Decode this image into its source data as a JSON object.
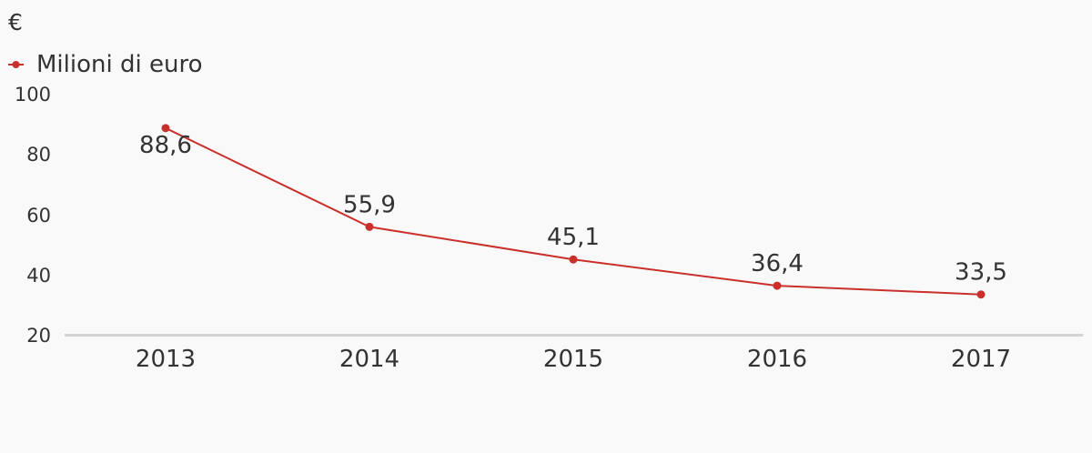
{
  "chart_data": {
    "type": "line",
    "unit_label": "€",
    "categories": [
      "2013",
      "2014",
      "2015",
      "2016",
      "2017"
    ],
    "series": [
      {
        "name": "Milioni di euro",
        "values": [
          88.6,
          55.9,
          45.1,
          36.4,
          33.5
        ],
        "labels": [
          "88,6",
          "55,9",
          "45,1",
          "36,4",
          "33,5"
        ],
        "color": "#c9302c"
      }
    ],
    "yticks": [
      "100",
      "80",
      "60",
      "40",
      "20"
    ],
    "ylim": [
      20,
      100
    ],
    "legend_position": "top-left",
    "grid": false,
    "axis_color": "#d4d4d4",
    "background": "#f9f9f9"
  }
}
